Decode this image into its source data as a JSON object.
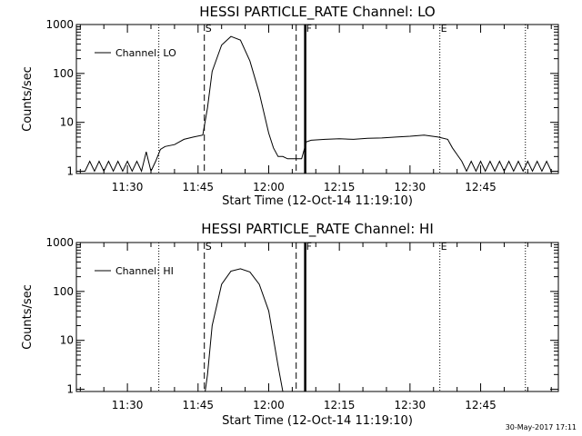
{
  "chart_data": [
    {
      "type": "line",
      "title": "HESSI PARTICLE_RATE Channel: LO",
      "xlabel": "Start Time (12-Oct-14 11:19:10)",
      "ylabel": "Counts/sec",
      "yscale": "log",
      "ylim": [
        0.9,
        1000
      ],
      "xlim": [
        "11:19:10",
        "13:01:30"
      ],
      "x_tick_labels": [
        "11:30",
        "11:45",
        "12:00",
        "12:15",
        "12:30",
        "12:45"
      ],
      "y_tick_labels": [
        "1",
        "10",
        "100",
        "1000"
      ],
      "legend": {
        "placement": "top-left",
        "label": "Channel: LO"
      },
      "vertical_markers": [
        {
          "label": "",
          "time": "11:36:40",
          "style": "dotted"
        },
        {
          "label": "S",
          "time": "11:46:20",
          "style": "dashed"
        },
        {
          "label": "",
          "time": "12:05:50",
          "style": "dashed"
        },
        {
          "label": "F",
          "time": "12:07:45",
          "style": "solid"
        },
        {
          "label": "E",
          "time": "12:36:20",
          "style": "dotted"
        },
        {
          "label": "",
          "time": "12:54:30",
          "style": "dotted"
        }
      ],
      "series": [
        {
          "name": "Channel: LO",
          "x": [
            "11:19:10",
            "11:21:00",
            "11:22:00",
            "11:23:00",
            "11:24:00",
            "11:25:00",
            "11:26:00",
            "11:27:00",
            "11:28:00",
            "11:29:00",
            "11:30:00",
            "11:31:00",
            "11:32:00",
            "11:33:00",
            "11:34:00",
            "11:35:00",
            "11:36:00",
            "11:37:00",
            "11:38:00",
            "11:40:00",
            "11:42:00",
            "11:44:00",
            "11:46:00",
            "11:47:00",
            "11:48:00",
            "11:50:00",
            "11:52:00",
            "11:54:00",
            "11:56:00",
            "11:58:00",
            "12:00:00",
            "12:01:00",
            "12:02:00",
            "12:03:00",
            "12:04:00",
            "12:05:00",
            "12:06:00",
            "12:07:00",
            "12:08:00",
            "12:09:00",
            "12:12:00",
            "12:15:00",
            "12:18:00",
            "12:21:00",
            "12:24:00",
            "12:27:00",
            "12:30:00",
            "12:33:00",
            "12:36:00",
            "12:38:00",
            "12:39:00",
            "12:40:00",
            "12:41:00",
            "12:42:00",
            "12:43:00",
            "12:44:00",
            "12:45:00",
            "12:46:00",
            "12:47:00",
            "12:48:00",
            "12:49:00",
            "12:50:00",
            "12:51:00",
            "12:52:00",
            "12:53:00",
            "12:54:00",
            "12:55:00",
            "12:56:00",
            "12:57:00",
            "12:58:00",
            "12:59:00",
            "13:00:00",
            "13:01:30"
          ],
          "values": [
            1,
            1,
            1.6,
            1,
            1.6,
            1,
            1.6,
            1,
            1.6,
            1,
            1.6,
            1,
            1.6,
            1,
            2.5,
            1,
            1.6,
            2.8,
            3.2,
            3.5,
            4.5,
            5,
            5.5,
            20,
            110,
            380,
            570,
            480,
            180,
            40,
            6,
            3,
            2,
            2,
            1.8,
            1.8,
            1.8,
            1.8,
            4,
            4.3,
            4.5,
            4.6,
            4.5,
            4.7,
            4.8,
            5,
            5.2,
            5.5,
            5,
            4.5,
            3,
            2.2,
            1.6,
            1,
            1.6,
            1,
            1.6,
            1,
            1.6,
            1,
            1.6,
            1,
            1.6,
            1,
            1.6,
            1,
            1.6,
            1,
            1.6,
            1,
            1.6,
            1,
            1
          ]
        }
      ]
    },
    {
      "type": "line",
      "title": "HESSI PARTICLE_RATE Channel: HI",
      "xlabel": "Start Time (12-Oct-14 11:19:10)",
      "ylabel": "Counts/sec",
      "yscale": "log",
      "ylim": [
        0.9,
        1000
      ],
      "xlim": [
        "11:19:10",
        "13:01:30"
      ],
      "x_tick_labels": [
        "11:30",
        "11:45",
        "12:00",
        "12:15",
        "12:30",
        "12:45"
      ],
      "y_tick_labels": [
        "1",
        "10",
        "100",
        "1000"
      ],
      "legend": {
        "placement": "top-left",
        "label": "Channel: HI"
      },
      "vertical_markers": [
        {
          "label": "",
          "time": "11:36:40",
          "style": "dotted"
        },
        {
          "label": "S",
          "time": "11:46:20",
          "style": "dashed"
        },
        {
          "label": "",
          "time": "12:05:50",
          "style": "dashed"
        },
        {
          "label": "F",
          "time": "12:07:45",
          "style": "solid"
        },
        {
          "label": "E",
          "time": "12:36:20",
          "style": "dotted"
        },
        {
          "label": "",
          "time": "12:54:30",
          "style": "dotted"
        }
      ],
      "series": [
        {
          "name": "Channel: HI",
          "x": [
            "11:46:30",
            "11:47:00",
            "11:48:00",
            "11:50:00",
            "11:52:00",
            "11:54:00",
            "11:56:00",
            "11:58:00",
            "12:00:00",
            "12:02:00",
            "12:03:00"
          ],
          "values": [
            0.9,
            2,
            20,
            140,
            260,
            290,
            250,
            140,
            40,
            3,
            0.9
          ]
        }
      ]
    }
  ],
  "footer": {
    "timestamp": "30-May-2017 17:11"
  }
}
